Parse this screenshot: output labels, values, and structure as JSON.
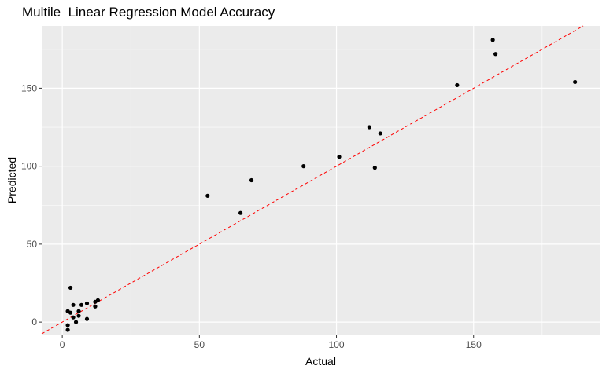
{
  "chart_data": {
    "type": "scatter",
    "title": "Multile  Linear Regression Model Accuracy",
    "xlabel": "Actual",
    "ylabel": "Predicted",
    "xlim": [
      -7.5,
      196
    ],
    "ylim": [
      -8,
      190
    ],
    "x_ticks": [
      0,
      50,
      100,
      150
    ],
    "y_ticks": [
      0,
      50,
      100,
      150
    ],
    "grid": true,
    "background_color": "#ebebeb",
    "grid_color": "#ffffff",
    "point_color": "#000000",
    "reference_line": {
      "slope": 1,
      "intercept": 0,
      "color": "#ff0000",
      "style": "dashed"
    },
    "points": [
      {
        "x": 3,
        "y": 22
      },
      {
        "x": 2,
        "y": 7
      },
      {
        "x": 3,
        "y": 6
      },
      {
        "x": 4,
        "y": 11
      },
      {
        "x": 4,
        "y": 3
      },
      {
        "x": 5,
        "y": 0
      },
      {
        "x": 6,
        "y": 4
      },
      {
        "x": 6,
        "y": 7
      },
      {
        "x": 7,
        "y": 11
      },
      {
        "x": 2,
        "y": -2
      },
      {
        "x": 2,
        "y": -5
      },
      {
        "x": 9,
        "y": 2
      },
      {
        "x": 9,
        "y": 12
      },
      {
        "x": 12,
        "y": 10
      },
      {
        "x": 12,
        "y": 13
      },
      {
        "x": 13,
        "y": 14
      },
      {
        "x": 53,
        "y": 81
      },
      {
        "x": 65,
        "y": 70
      },
      {
        "x": 69,
        "y": 91
      },
      {
        "x": 88,
        "y": 100
      },
      {
        "x": 101,
        "y": 106
      },
      {
        "x": 112,
        "y": 125
      },
      {
        "x": 114,
        "y": 99
      },
      {
        "x": 116,
        "y": 121
      },
      {
        "x": 144,
        "y": 152
      },
      {
        "x": 157,
        "y": 181
      },
      {
        "x": 158,
        "y": 172
      },
      {
        "x": 187,
        "y": 154
      }
    ]
  }
}
